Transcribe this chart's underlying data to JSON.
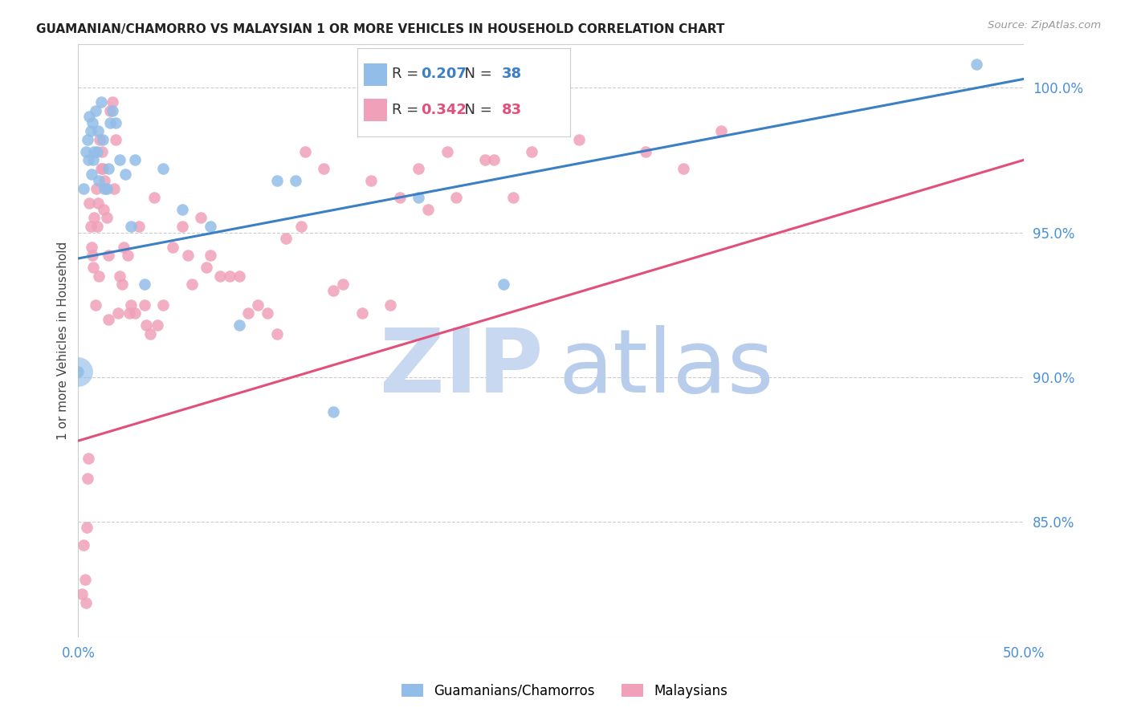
{
  "title": "GUAMANIAN/CHAMORRO VS MALAYSIAN 1 OR MORE VEHICLES IN HOUSEHOLD CORRELATION CHART",
  "source": "Source: ZipAtlas.com",
  "ylabel": "1 or more Vehicles in Household",
  "xlim": [
    0.0,
    50.0
  ],
  "ylim": [
    81.0,
    101.5
  ],
  "xticks": [
    0.0,
    10.0,
    20.0,
    30.0,
    40.0,
    50.0
  ],
  "xtick_labels": [
    "0.0%",
    "",
    "",
    "",
    "",
    "50.0%"
  ],
  "yticks": [
    85.0,
    90.0,
    95.0,
    100.0
  ],
  "ytick_labels": [
    "85.0%",
    "90.0%",
    "95.0%",
    "100.0%"
  ],
  "legend_labels": [
    "Guamanians/Chamorros",
    "Malaysians"
  ],
  "r_blue": "0.207",
  "n_blue": "38",
  "r_pink": "0.342",
  "n_pink": "83",
  "blue_color": "#92BDE8",
  "pink_color": "#F0A0B8",
  "blue_line_color": "#3B7FC4",
  "pink_line_color": "#E0507A",
  "watermark_zip_color": "#C8D8F0",
  "watermark_atlas_color": "#B8CCEC",
  "background_color": "#ffffff",
  "tick_color": "#4A90D9",
  "blue_line_x": [
    0.0,
    50.0
  ],
  "blue_line_y": [
    94.1,
    100.3
  ],
  "pink_line_x": [
    0.0,
    50.0
  ],
  "pink_line_y": [
    87.8,
    97.5
  ],
  "blue_scatter_x": [
    0.3,
    0.4,
    0.5,
    0.55,
    0.6,
    0.65,
    0.7,
    0.75,
    0.8,
    0.85,
    0.9,
    1.0,
    1.05,
    1.1,
    1.2,
    1.3,
    1.5,
    1.6,
    1.7,
    1.8,
    2.0,
    2.2,
    2.5,
    3.0,
    3.5,
    4.5,
    5.5,
    7.0,
    8.5,
    10.5,
    11.5,
    13.5,
    18.0,
    22.5,
    0.0,
    1.4,
    2.8,
    47.5
  ],
  "blue_scatter_y": [
    96.5,
    97.8,
    98.2,
    97.5,
    99.0,
    98.5,
    97.0,
    98.8,
    97.5,
    97.8,
    99.2,
    97.8,
    98.5,
    96.8,
    99.5,
    98.2,
    96.5,
    97.2,
    98.8,
    99.2,
    98.8,
    97.5,
    97.0,
    97.5,
    93.2,
    97.2,
    95.8,
    95.2,
    91.8,
    96.8,
    96.8,
    88.8,
    96.2,
    93.2,
    90.2,
    96.5,
    95.2,
    100.8
  ],
  "blue_scatter_large_x": [
    0.0
  ],
  "blue_scatter_large_y": [
    90.2
  ],
  "pink_scatter_x": [
    0.2,
    0.3,
    0.35,
    0.4,
    0.45,
    0.5,
    0.55,
    0.6,
    0.65,
    0.7,
    0.75,
    0.8,
    0.85,
    0.9,
    0.95,
    1.0,
    1.05,
    1.1,
    1.15,
    1.2,
    1.25,
    1.3,
    1.4,
    1.5,
    1.6,
    1.7,
    1.8,
    1.9,
    2.0,
    2.1,
    2.2,
    2.4,
    2.6,
    2.8,
    3.0,
    3.2,
    3.5,
    3.8,
    4.0,
    4.5,
    5.0,
    5.5,
    6.0,
    6.5,
    7.0,
    7.5,
    8.0,
    9.0,
    10.0,
    11.0,
    12.0,
    13.0,
    14.0,
    15.5,
    17.0,
    18.5,
    20.0,
    21.5,
    23.0,
    25.0,
    1.35,
    2.3,
    3.6,
    4.2,
    5.8,
    6.8,
    8.5,
    9.5,
    10.5,
    11.8,
    13.5,
    15.0,
    16.5,
    18.0,
    19.5,
    22.0,
    24.0,
    26.5,
    30.0,
    32.0,
    34.0,
    1.6,
    2.7
  ],
  "pink_scatter_y": [
    82.5,
    84.2,
    83.0,
    82.2,
    84.8,
    86.5,
    87.2,
    96.0,
    95.2,
    94.5,
    94.2,
    93.8,
    95.5,
    92.5,
    96.5,
    95.2,
    96.0,
    93.5,
    98.2,
    97.2,
    97.8,
    97.2,
    96.8,
    95.5,
    94.2,
    99.2,
    99.5,
    96.5,
    98.2,
    92.2,
    93.5,
    94.5,
    94.2,
    92.5,
    92.2,
    95.2,
    92.5,
    91.5,
    96.2,
    92.5,
    94.5,
    95.2,
    93.2,
    95.5,
    94.2,
    93.5,
    93.5,
    92.2,
    92.2,
    94.8,
    97.8,
    97.2,
    93.2,
    96.8,
    96.2,
    95.8,
    96.2,
    97.5,
    96.2,
    98.5,
    95.8,
    93.2,
    91.8,
    91.8,
    94.2,
    93.8,
    93.5,
    92.5,
    91.5,
    95.2,
    93.0,
    92.2,
    92.5,
    97.2,
    97.8,
    97.5,
    97.8,
    98.2,
    97.8,
    97.2,
    98.5,
    92.0,
    92.2
  ]
}
